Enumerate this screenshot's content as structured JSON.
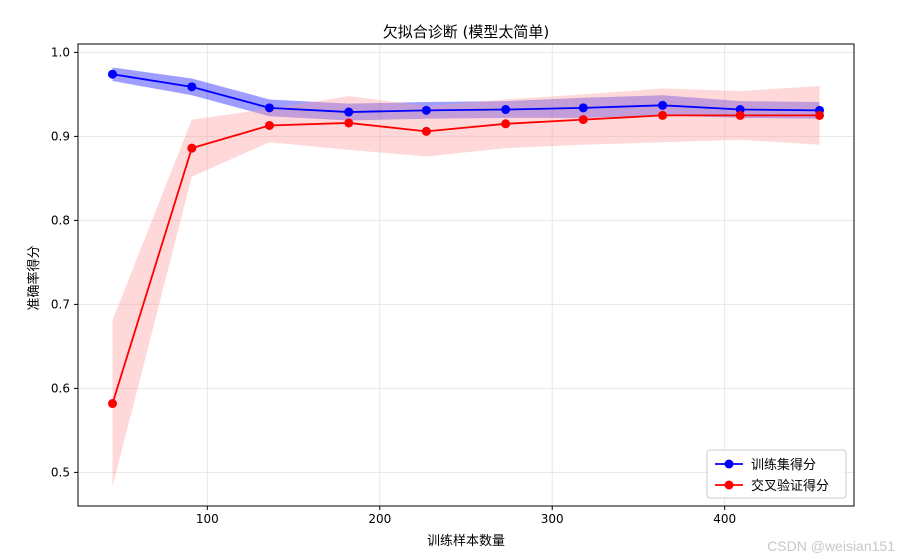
{
  "chart_data": {
    "type": "line",
    "title": "欠拟合诊断 (模型太简单)",
    "xlabel": "训练样本数量",
    "ylabel": "准确率得分",
    "xlim": [
      25,
      475
    ],
    "ylim": [
      0.46,
      1.01
    ],
    "xticks": [
      100,
      200,
      300,
      400
    ],
    "yticks": [
      0.5,
      0.6,
      0.7,
      0.8,
      0.9,
      1.0
    ],
    "ytick_labels": [
      "0.5",
      "0.6",
      "0.7",
      "0.8",
      "0.9",
      "1.0"
    ],
    "grid": true,
    "legend_position": "lower-right",
    "x": [
      45,
      91,
      136,
      182,
      227,
      273,
      318,
      364,
      409,
      455
    ],
    "series": [
      {
        "name": "训练集得分",
        "color": "#0000ff",
        "band_color": "#0000ff",
        "values": [
          0.974,
          0.959,
          0.934,
          0.929,
          0.931,
          0.932,
          0.934,
          0.937,
          0.932,
          0.931
        ],
        "band": [
          [
            0.966,
            0.982
          ],
          [
            0.949,
            0.969
          ],
          [
            0.924,
            0.944
          ],
          [
            0.919,
            0.939
          ],
          [
            0.921,
            0.941
          ],
          [
            0.922,
            0.942
          ],
          [
            0.922,
            0.946
          ],
          [
            0.925,
            0.949
          ],
          [
            0.922,
            0.942
          ],
          [
            0.921,
            0.941
          ]
        ]
      },
      {
        "name": "交叉验证得分",
        "color": "#ff0000",
        "band_color": "#ff9a9a",
        "values": [
          0.582,
          0.886,
          0.913,
          0.916,
          0.906,
          0.915,
          0.92,
          0.925,
          0.925,
          0.925
        ],
        "band": [
          [
            0.483,
            0.681
          ],
          [
            0.852,
            0.92
          ],
          [
            0.893,
            0.933
          ],
          [
            0.884,
            0.948
          ],
          [
            0.876,
            0.936
          ],
          [
            0.886,
            0.944
          ],
          [
            0.89,
            0.95
          ],
          [
            0.893,
            0.957
          ],
          [
            0.896,
            0.954
          ],
          [
            0.89,
            0.96
          ]
        ]
      }
    ]
  },
  "watermark": "CSDN @weisian151"
}
